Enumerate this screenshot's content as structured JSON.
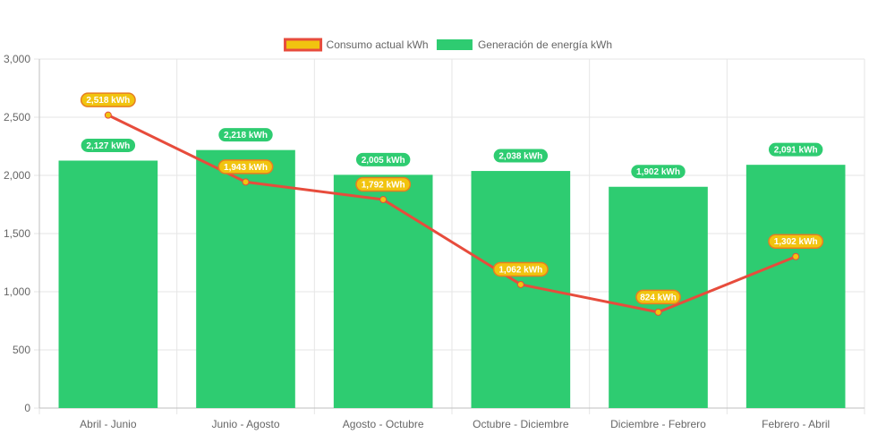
{
  "chart_data": {
    "type": "bar",
    "categories": [
      "Abril - Junio",
      "Junio - Agosto",
      "Agosto - Octubre",
      "Octubre - Diciembre",
      "Diciembre - Febrero",
      "Febrero - Abril"
    ],
    "ylim": [
      0,
      3000
    ],
    "yticks": [
      "0",
      "500",
      "1,000",
      "1,500",
      "2,000",
      "2,500",
      "3,000"
    ],
    "grid": true,
    "legend_position": "top",
    "series": [
      {
        "name": "Consumo actual kWh",
        "kind": "line",
        "color": "#e74c3c",
        "fill": "#f1c40f",
        "values": [
          2518,
          1943,
          1792,
          1062,
          824,
          1302
        ],
        "labels": [
          "2,518 kWh",
          "1,943 kWh",
          "1,792 kWh",
          "1,062 kWh",
          "824 kWh",
          "1,302 kWh"
        ]
      },
      {
        "name": "Generación de energía kWh",
        "kind": "bar",
        "color": "#2ecc71",
        "values": [
          2127,
          2218,
          2005,
          2038,
          1902,
          2091
        ],
        "labels": [
          "2,127 kWh",
          "2,218 kWh",
          "2,005 kWh",
          "2,038 kWh",
          "1,902 kWh",
          "2,091 kWh"
        ]
      }
    ]
  }
}
